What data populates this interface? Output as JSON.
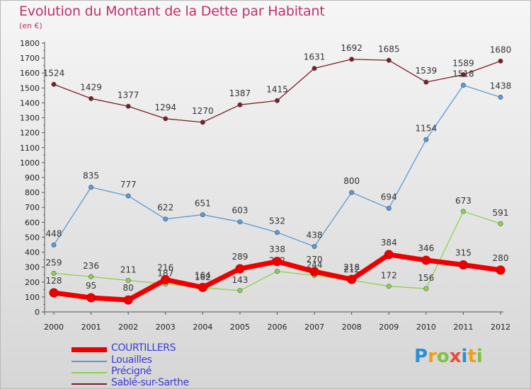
{
  "title": "Evolution du Montant de la Dette par Habitant",
  "subtitle": "(en €)",
  "chart_data": {
    "type": "line",
    "title": "Evolution du Montant de la Dette par Habitant",
    "subtitle": "(en €)",
    "x": [
      "2000",
      "2001",
      "2002",
      "2003",
      "2004",
      "2005",
      "2006",
      "2007",
      "2008",
      "2009",
      "2010",
      "2011",
      "2012"
    ],
    "ylim": [
      0,
      1800
    ],
    "yticks": [
      0,
      100,
      200,
      300,
      400,
      500,
      600,
      700,
      800,
      900,
      1000,
      1100,
      1200,
      1300,
      1400,
      1500,
      1600,
      1700,
      1800
    ],
    "grid": false,
    "legend_position": "bottom-left",
    "series": [
      {
        "name": "COURTILLERS",
        "color": "#ee0000",
        "values": [
          128,
          95,
          80,
          216,
          164,
          289,
          338,
          270,
          218,
          384,
          346,
          315,
          280
        ]
      },
      {
        "name": "Louailles",
        "color": "#5b9bd5",
        "values": [
          448,
          835,
          777,
          622,
          651,
          603,
          532,
          438,
          800,
          694,
          1154,
          1518,
          1438
        ]
      },
      {
        "name": "Précigné",
        "color": "#8fd14f",
        "values": [
          259,
          236,
          211,
          187,
          162,
          143,
          272,
          244,
          212,
          172,
          156,
          673,
          591
        ]
      },
      {
        "name": "Sablé-sur-Sarthe",
        "color": "#7a1f24",
        "values": [
          1524,
          1429,
          1377,
          1294,
          1270,
          1387,
          1415,
          1631,
          1692,
          1685,
          1539,
          1589,
          1680
        ]
      }
    ]
  },
  "logo": {
    "letters": [
      "P",
      "r",
      "o",
      "x",
      "i",
      "t",
      "i"
    ],
    "colors": [
      "#2b8fd6",
      "#f39c12",
      "#7fc241",
      "#e74c3c",
      "#2b8fd6",
      "#f39c12",
      "#7fc241"
    ]
  }
}
